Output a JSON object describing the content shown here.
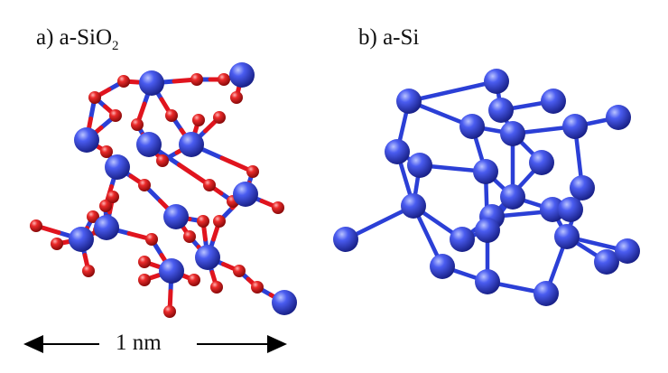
{
  "panel_a": {
    "label_prefix": "a) a-SiO",
    "label_sub": "2"
  },
  "panel_b": {
    "label": "b) a-Si"
  },
  "scale_bar": {
    "label": "1 nm"
  },
  "colors": {
    "silicon": "#2b3fd6",
    "oxygen": "#e0141e",
    "background": "#ffffff",
    "text": "#111111"
  }
}
